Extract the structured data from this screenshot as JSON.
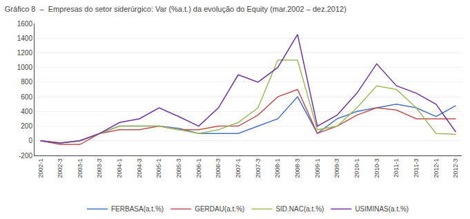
{
  "chart_data": {
    "type": "line",
    "title": "Gráfico 8  –  Empresas do setor siderúrgico: Var (%a.t.) da evolução do Equity (mar.2002 – dez.2012)",
    "categories": [
      "2002-1",
      "2002-3",
      "2003-1",
      "2003-3",
      "2004-1",
      "2004-3",
      "2005-1",
      "2005-3",
      "2006-1",
      "2006-3",
      "2007-1",
      "2007-3",
      "2008-1",
      "2008-3",
      "2009-1",
      "2009-3",
      "2010-1",
      "2010-3",
      "2011-1",
      "2011-3",
      "2012-1",
      "2012-3"
    ],
    "series": [
      {
        "name": "FERBASA(a.t.%)",
        "color": "#4472c4",
        "values": [
          0,
          -30,
          0,
          100,
          200,
          200,
          200,
          170,
          100,
          100,
          100,
          200,
          300,
          600,
          100,
          300,
          400,
          450,
          500,
          450,
          330,
          480
        ]
      },
      {
        "name": "GERDAU(a.t.%)",
        "color": "#c0504d",
        "values": [
          0,
          -50,
          -50,
          100,
          150,
          150,
          200,
          150,
          150,
          200,
          200,
          350,
          600,
          700,
          100,
          200,
          350,
          450,
          420,
          300,
          300,
          300
        ]
      },
      {
        "name": "SID.NAC(a.t.%)",
        "color": "#9bbb59",
        "values": [
          0,
          -30,
          0,
          100,
          200,
          200,
          200,
          150,
          100,
          150,
          250,
          450,
          1100,
          1100,
          150,
          200,
          450,
          750,
          700,
          450,
          100,
          90
        ]
      },
      {
        "name": "USIMINAS(a.t.%)",
        "color": "#7030a0",
        "values": [
          0,
          -30,
          0,
          100,
          250,
          300,
          450,
          330,
          200,
          450,
          900,
          800,
          1000,
          1450,
          200,
          350,
          650,
          1050,
          750,
          650,
          500,
          120
        ]
      }
    ],
    "ylim": [
      -200,
      1600
    ],
    "yticks": [
      -200,
      0,
      200,
      400,
      600,
      800,
      1000,
      1200,
      1400,
      1600
    ],
    "grid": true,
    "legend": "bottom"
  }
}
